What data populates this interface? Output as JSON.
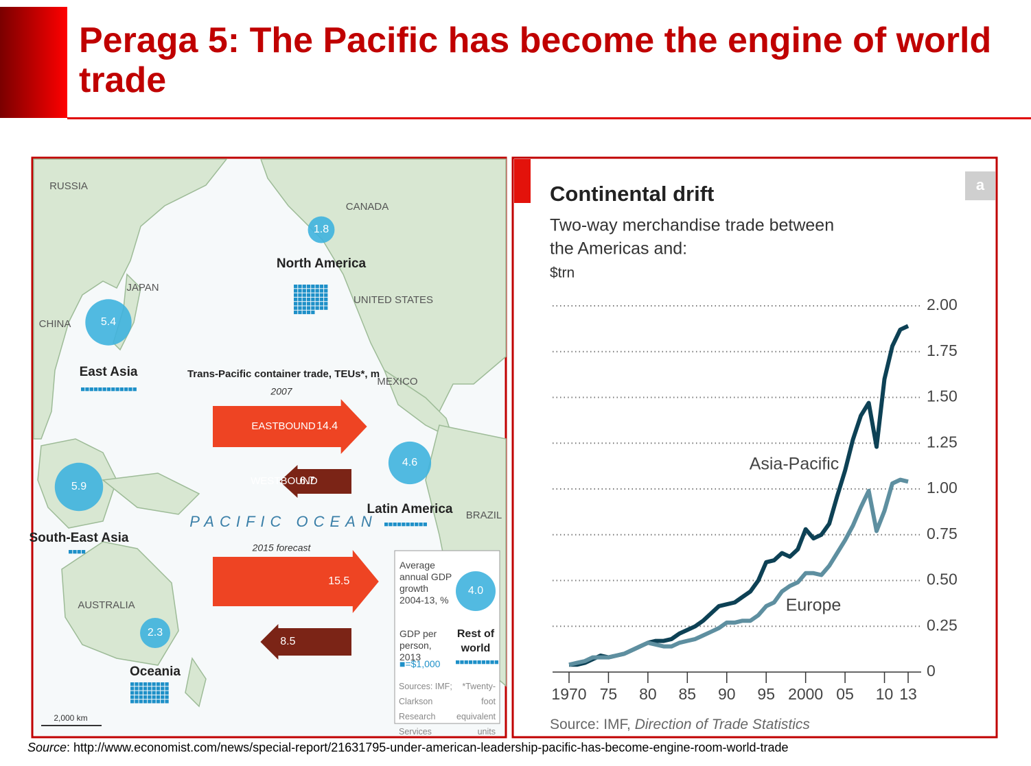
{
  "header": {
    "title": "Peraga 5: The Pacific has become the engine of world trade"
  },
  "map": {
    "countries": [
      "RUSSIA",
      "CANADA",
      "JAPAN",
      "CHINA",
      "UNITED STATES",
      "MEXICO",
      "BRAZIL",
      "AUSTRALIA"
    ],
    "regions": [
      {
        "name": "North America",
        "gdp_growth": 1.8,
        "gdp_per_person": 53
      },
      {
        "name": "East Asia",
        "gdp_growth": 5.4,
        "gdp_per_person": 13
      },
      {
        "name": "South-East Asia",
        "gdp_growth": 5.9,
        "gdp_per_person": 4
      },
      {
        "name": "Latin America",
        "gdp_growth": 4.6,
        "gdp_per_person": 10
      },
      {
        "name": "Oceania",
        "gdp_growth": 2.3,
        "gdp_per_person": 45
      },
      {
        "name": "Rest of world",
        "gdp_growth": 4,
        "gdp_growth_label": "4.0",
        "gdp_per_person": 10
      }
    ],
    "trade_title": "Trans-Pacific container trade, TEUs*, m",
    "periods": [
      {
        "label": "2007",
        "eastbound": 14.4,
        "westbound": 6.7
      },
      {
        "label": "2015 forecast",
        "eastbound": 15.5,
        "westbound": 8.5
      }
    ],
    "eastbound_label": "EASTBOUND",
    "westbound_label": "WESTBOUND",
    "ocean": "PACIFIC OCEAN",
    "legend": {
      "growth": "Average annual GDP growth 2004-13, %",
      "gdp": "GDP per person, 2013",
      "square": "■=$1,000",
      "sources": "Sources: IMF; Clarkson Research Services",
      "footnote": "*Twenty-foot equivalent units"
    },
    "scale": "2,000 km"
  },
  "chart_data": {
    "type": "line",
    "badge": "a",
    "title": "Continental drift",
    "subtitle": [
      "Two-way merchandise trade between",
      "the Americas and:"
    ],
    "unit": "$trn",
    "x": [
      1970,
      1971,
      1972,
      1973,
      1974,
      1975,
      1976,
      1977,
      1978,
      1979,
      1980,
      1981,
      1982,
      1983,
      1984,
      1985,
      1986,
      1987,
      1988,
      1989,
      1990,
      1991,
      1992,
      1993,
      1994,
      1995,
      1996,
      1997,
      1998,
      1999,
      2000,
      2001,
      2002,
      2003,
      2004,
      2005,
      2006,
      2007,
      2008,
      2009,
      2010,
      2011,
      2012,
      2013
    ],
    "series": [
      {
        "name": "Asia-Pacific",
        "color": "#0d4155",
        "values": [
          0.04,
          0.04,
          0.05,
          0.07,
          0.09,
          0.08,
          0.09,
          0.1,
          0.12,
          0.14,
          0.16,
          0.17,
          0.17,
          0.18,
          0.21,
          0.23,
          0.25,
          0.28,
          0.32,
          0.36,
          0.37,
          0.38,
          0.41,
          0.44,
          0.5,
          0.6,
          0.61,
          0.65,
          0.63,
          0.67,
          0.78,
          0.73,
          0.75,
          0.81,
          0.96,
          1.1,
          1.27,
          1.4,
          1.47,
          1.23,
          1.6,
          1.78,
          1.87,
          1.89
        ]
      },
      {
        "name": "Europe",
        "color": "#5e8fa0",
        "values": [
          0.04,
          0.05,
          0.06,
          0.08,
          0.08,
          0.08,
          0.09,
          0.1,
          0.12,
          0.14,
          0.16,
          0.15,
          0.14,
          0.14,
          0.16,
          0.17,
          0.18,
          0.2,
          0.22,
          0.24,
          0.27,
          0.27,
          0.28,
          0.28,
          0.31,
          0.36,
          0.38,
          0.44,
          0.47,
          0.49,
          0.54,
          0.54,
          0.53,
          0.58,
          0.65,
          0.72,
          0.8,
          0.9,
          0.99,
          0.77,
          0.88,
          1.03,
          1.05,
          1.04
        ]
      }
    ],
    "xlim": [
      1970,
      2013
    ],
    "xticks": [
      1970,
      {
        "value": 1975,
        "label": "75"
      },
      {
        "value": 1980,
        "label": "80"
      },
      {
        "value": 1985,
        "label": "85"
      },
      {
        "value": 1990,
        "label": "90"
      },
      {
        "value": 1995,
        "label": "95"
      },
      2000,
      {
        "value": 2005,
        "label": "05"
      },
      {
        "value": 2010,
        "label": "10"
      },
      {
        "value": 2013,
        "label": "13"
      }
    ],
    "ylim": [
      0,
      2
    ],
    "yticks": [
      0,
      0.25,
      {
        "value": 0.5,
        "label": "0.50"
      },
      0.75,
      {
        "value": 1,
        "label": "1.00"
      },
      1.25,
      {
        "value": 1.5,
        "label": "1.50"
      },
      1.75,
      {
        "value": 2,
        "label": "2.00"
      }
    ],
    "grid": true,
    "source": {
      "prefix": "Source: IMF, ",
      "title": "Direction of Trade Statistics"
    }
  },
  "footer": {
    "label": "Source",
    "text": ": http://www.economist.com/news/special-report/21631795-under-american-leadership-pacific-has-become-engine-room-world-trade"
  }
}
